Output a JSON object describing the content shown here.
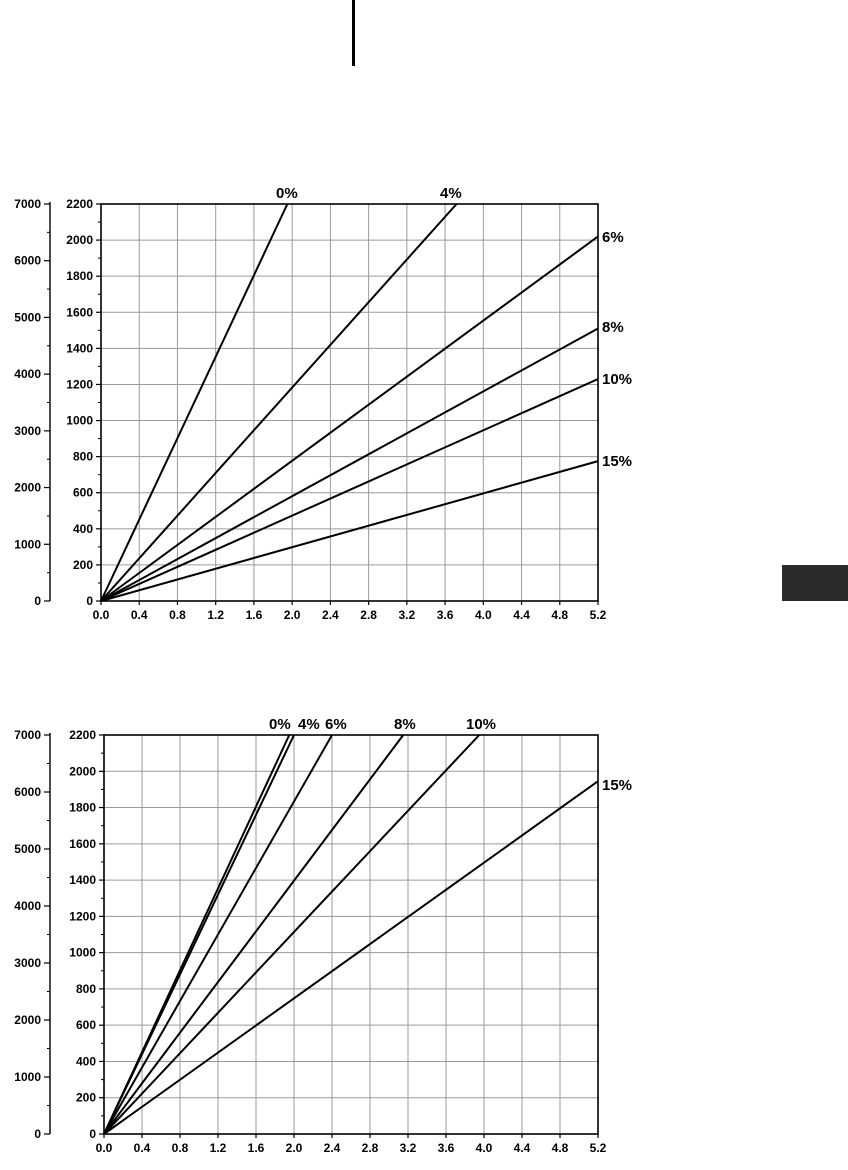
{
  "chart_data": [
    {
      "type": "line",
      "x_ticks": [
        "0.0",
        "0.4",
        "0.8",
        "1.2",
        "1.6",
        "2.0",
        "2.4",
        "2.8",
        "3.2",
        "3.6",
        "4.0",
        "4.4",
        "4.8",
        "5.2"
      ],
      "y_ticks": [
        "0",
        "200",
        "400",
        "600",
        "800",
        "1000",
        "1200",
        "1400",
        "1600",
        "1800",
        "2000",
        "2200"
      ],
      "y2_ticks": [
        "0",
        "1000",
        "2000",
        "3000",
        "4000",
        "5000",
        "6000",
        "7000"
      ],
      "xlim": [
        0,
        5.2
      ],
      "ylim": [
        0,
        2200
      ],
      "y2lim": [
        0,
        7000
      ],
      "grid": true,
      "series": [
        {
          "name": "0%",
          "x": [
            0,
            1.95
          ],
          "y": [
            0,
            2200
          ]
        },
        {
          "name": "4%",
          "x": [
            0,
            3.72
          ],
          "y": [
            0,
            2200
          ]
        },
        {
          "name": "6%",
          "x": [
            0,
            5.2
          ],
          "y": [
            0,
            2020
          ]
        },
        {
          "name": "8%",
          "x": [
            0,
            5.2
          ],
          "y": [
            0,
            1510
          ]
        },
        {
          "name": "10%",
          "x": [
            0,
            5.2
          ],
          "y": [
            0,
            1230
          ]
        },
        {
          "name": "15%",
          "x": [
            0,
            5.2
          ],
          "y": [
            0,
            775
          ]
        }
      ]
    },
    {
      "type": "line",
      "x_ticks": [
        "0.0",
        "0.4",
        "0.8",
        "1.2",
        "1.6",
        "2.0",
        "2.4",
        "2.8",
        "3.2",
        "3.6",
        "4.0",
        "4.4",
        "4.8",
        "5.2"
      ],
      "y_ticks": [
        "0",
        "200",
        "400",
        "600",
        "800",
        "1000",
        "1200",
        "1400",
        "1600",
        "1800",
        "2000",
        "2200"
      ],
      "y2_ticks": [
        "0",
        "1000",
        "2000",
        "3000",
        "4000",
        "5000",
        "6000",
        "7000"
      ],
      "xlim": [
        0,
        5.2
      ],
      "ylim": [
        0,
        2200
      ],
      "y2lim": [
        0,
        7000
      ],
      "grid": true,
      "series": [
        {
          "name": "0%",
          "x": [
            0,
            1.95
          ],
          "y": [
            0,
            2200
          ]
        },
        {
          "name": "4%",
          "x": [
            0,
            2.0
          ],
          "y": [
            0,
            2200
          ]
        },
        {
          "name": "6%",
          "x": [
            0,
            2.4
          ],
          "y": [
            0,
            2200
          ]
        },
        {
          "name": "8%",
          "x": [
            0,
            3.15
          ],
          "y": [
            0,
            2200
          ]
        },
        {
          "name": "10%",
          "x": [
            0,
            3.95
          ],
          "y": [
            0,
            2200
          ]
        },
        {
          "name": "15%",
          "x": [
            0,
            5.2
          ],
          "y": [
            0,
            1945
          ]
        }
      ]
    }
  ]
}
